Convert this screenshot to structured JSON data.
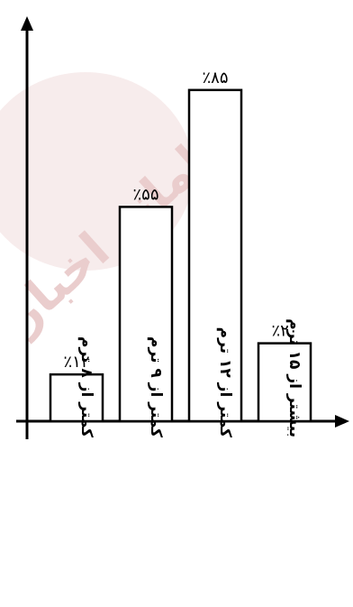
{
  "chart_data": {
    "type": "bar",
    "categories": [
      "کمتر از ۸ ترم",
      "کمتر از ۹ ترم",
      "کمتر از ۱۲ ترم",
      "بیشتر از ۱۵ ترم"
    ],
    "values": [
      12,
      55,
      85,
      20
    ],
    "value_labels": [
      "٪۱۲",
      "٪۵۵",
      "٪۸۵",
      "٪۲۰"
    ],
    "ylim": [
      0,
      100
    ],
    "grid": false,
    "title": "",
    "xlabel": "",
    "ylabel": ""
  },
  "watermark": "سامانه اخبار",
  "colors": {
    "bar_fill": "#ffffff",
    "stroke": "#000000",
    "watermark": "#e9c9c9"
  }
}
